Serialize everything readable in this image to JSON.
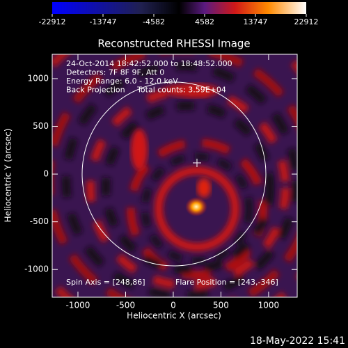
{
  "chart_data": {
    "type": "image",
    "title": "Reconstructed RHESSI Image",
    "x_label": "Heliocentric X (arcsec)",
    "y_label": "Heliocentric Y (arcsec)",
    "xlim": [
      -1270,
      1300
    ],
    "ylim": [
      -1290,
      1255
    ],
    "xticks": [
      -1000,
      -500,
      0,
      500,
      1000
    ],
    "yticks": [
      -1000,
      -500,
      0,
      500,
      1000
    ],
    "colorbar": {
      "lim": [
        -22912,
        22912
      ],
      "ticks": [
        -22912,
        -13747,
        -4582,
        4582,
        13747,
        22912
      ]
    },
    "annotations": [
      "24-Oct-2014 18:42:52.000 to 18:48:52.000",
      "Detectors: 7F 8F 9F, Att 0",
      "Energy Range: 6.0 - 12.0 keV",
      "Back Projection     Total counts: 3.59E+04"
    ],
    "spin_axis_label": "Spin Axis = [248,86]",
    "flare_position_label": "Flare Position = [243,-346]"
  },
  "timestamp": "18-May-2022 15:41"
}
